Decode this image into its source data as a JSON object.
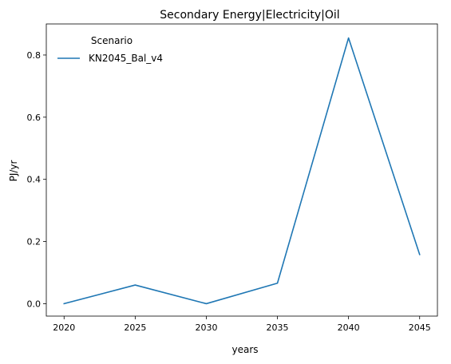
{
  "chart_data": {
    "type": "line",
    "title": "Secondary Energy|Electricity|Oil",
    "xlabel": "years",
    "ylabel": "PJ/yr",
    "x": [
      2020,
      2025,
      2030,
      2035,
      2040,
      2045
    ],
    "x_ticks": [
      "2020",
      "2025",
      "2030",
      "2035",
      "2040",
      "2045"
    ],
    "xlim": [
      2018.75,
      2046.25
    ],
    "y_ticks": [
      "0.0",
      "0.2",
      "0.4",
      "0.6",
      "0.8"
    ],
    "ylim": [
      -0.04,
      0.9
    ],
    "grid": false,
    "legend": {
      "title": "Scenario",
      "placement": "top-left"
    },
    "series": [
      {
        "name": "KN2045_Bal_v4",
        "color": "#1f77b4",
        "values": [
          0.0,
          0.06,
          0.0,
          0.066,
          0.855,
          0.158
        ]
      }
    ]
  }
}
